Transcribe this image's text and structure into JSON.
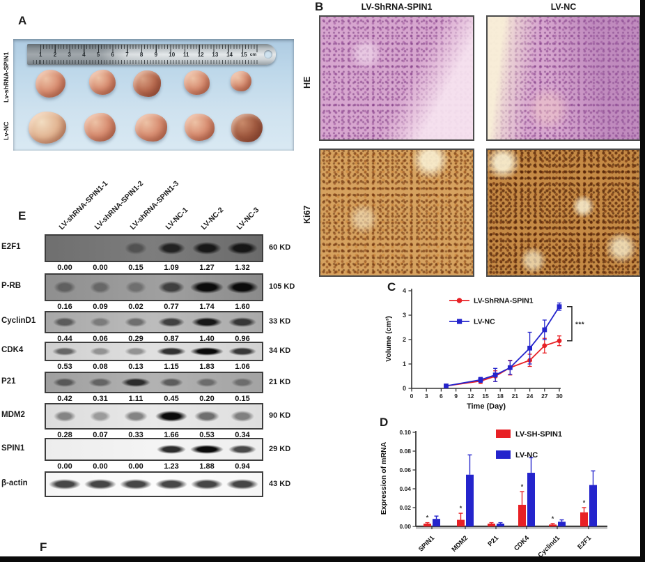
{
  "panels": {
    "a": {
      "label": "A",
      "row_labels": [
        "Lv-shRNA-SPIN1",
        "Lv-NC"
      ],
      "ruler": {
        "numbers": [
          "1",
          "2",
          "3",
          "4",
          "5",
          "6",
          "7",
          "8",
          "9",
          "10",
          "11",
          "12",
          "13",
          "14",
          "15"
        ],
        "unit": "cm"
      }
    },
    "b": {
      "label": "B",
      "columns": [
        "LV-ShRNA-SPIN1",
        "LV-NC"
      ],
      "rows": [
        "HE",
        "Ki67"
      ]
    },
    "c": {
      "label": "C"
    },
    "d": {
      "label": "D"
    },
    "e": {
      "label": "E",
      "lanes": [
        "LV-shRNA-SPIN1-1",
        "LV-shRNA-SPIN1-2",
        "LV-shRNA-SPIN1-3",
        "LV-NC-1",
        "LV-NC-2",
        "LV-NC-3"
      ],
      "blots": [
        {
          "protein": "E2F1",
          "values": [
            "0.00",
            "0.00",
            "0.15",
            "1.09",
            "1.27",
            "1.32"
          ],
          "size": "60 KD"
        },
        {
          "protein": "P-RB",
          "values": [
            "0.16",
            "0.09",
            "0.02",
            "0.77",
            "1.74",
            "1.60"
          ],
          "size": "105 KD"
        },
        {
          "protein": "CyclinD1",
          "values": [
            "0.44",
            "0.06",
            "0.29",
            "0.87",
            "1.40",
            "0.96"
          ],
          "size": "33 KD"
        },
        {
          "protein": "CDK4",
          "values": [
            "0.53",
            "0.08",
            "0.13",
            "1.15",
            "1.83",
            "1.06"
          ],
          "size": "34 KD"
        },
        {
          "protein": "P21",
          "values": [
            "0.42",
            "0.31",
            "1.11",
            "0.45",
            "0.20",
            "0.15"
          ],
          "size": "21 KD"
        },
        {
          "protein": "MDM2",
          "values": [
            "0.28",
            "0.07",
            "0.33",
            "1.66",
            "0.53",
            "0.34"
          ],
          "size": "90 KD"
        },
        {
          "protein": "SPIN1",
          "values": [
            "0.00",
            "0.00",
            "0.00",
            "1.23",
            "1.88",
            "0.94"
          ],
          "size": "29 KD"
        },
        {
          "protein": "β-actin",
          "values": [],
          "size": "43 KD"
        }
      ]
    },
    "f": {
      "label": "F"
    }
  },
  "colors": {
    "red": "#e82025",
    "blue": "#2424cc"
  },
  "chart_data": [
    {
      "type": "line",
      "panel": "C",
      "xlabel": "Time (Day)",
      "ylabel": "Volume (cm³)",
      "xlim": [
        0,
        30
      ],
      "ylim": [
        0,
        4
      ],
      "xticks": [
        0,
        3,
        6,
        9,
        12,
        15,
        18,
        21,
        24,
        27,
        30
      ],
      "yticks": [
        0,
        1,
        2,
        3,
        4
      ],
      "legend_position": "top-left",
      "grid": false,
      "series": [
        {
          "name": "LV-ShRNA-SPIN1",
          "color": "#e82025",
          "marker": "circle",
          "x": [
            7,
            14,
            17,
            20,
            24,
            27,
            30
          ],
          "y": [
            0.1,
            0.3,
            0.5,
            0.85,
            1.15,
            1.75,
            1.95
          ],
          "err": [
            0.05,
            0.1,
            0.22,
            0.3,
            0.25,
            0.3,
            0.2
          ]
        },
        {
          "name": "LV-NC",
          "color": "#2424cc",
          "marker": "square",
          "x": [
            7,
            14,
            17,
            20,
            24,
            27,
            30
          ],
          "y": [
            0.1,
            0.35,
            0.55,
            0.85,
            1.65,
            2.4,
            3.35
          ],
          "err": [
            0.05,
            0.1,
            0.27,
            0.28,
            0.65,
            0.4,
            0.15
          ]
        }
      ],
      "significance": "***"
    },
    {
      "type": "bar",
      "panel": "D",
      "ylabel": "Expression of mRNA",
      "ylim": [
        0,
        0.1
      ],
      "yticks": [
        0,
        0.02,
        0.04,
        0.06,
        0.08,
        0.1
      ],
      "categories": [
        "SPIN1",
        "MDM2",
        "P21",
        "CDK4",
        "Cyclind1",
        "E2F1"
      ],
      "legend_position": "top-right",
      "grid": false,
      "series": [
        {
          "name": "LV-SH-SPIN1",
          "color": "#e82025",
          "values": [
            0.003,
            0.007,
            0.003,
            0.023,
            0.002,
            0.015
          ],
          "errors": [
            0.001,
            0.007,
            0.001,
            0.014,
            0.001,
            0.005
          ],
          "sig": [
            "*",
            "*",
            "",
            "*",
            "*",
            "*"
          ]
        },
        {
          "name": "LV-NC",
          "color": "#2424cc",
          "values": [
            0.008,
            0.055,
            0.003,
            0.057,
            0.005,
            0.044
          ],
          "errors": [
            0.003,
            0.021,
            0.001,
            0.016,
            0.002,
            0.015
          ],
          "sig": [
            "",
            "",
            "",
            "",
            "",
            ""
          ]
        }
      ]
    }
  ]
}
